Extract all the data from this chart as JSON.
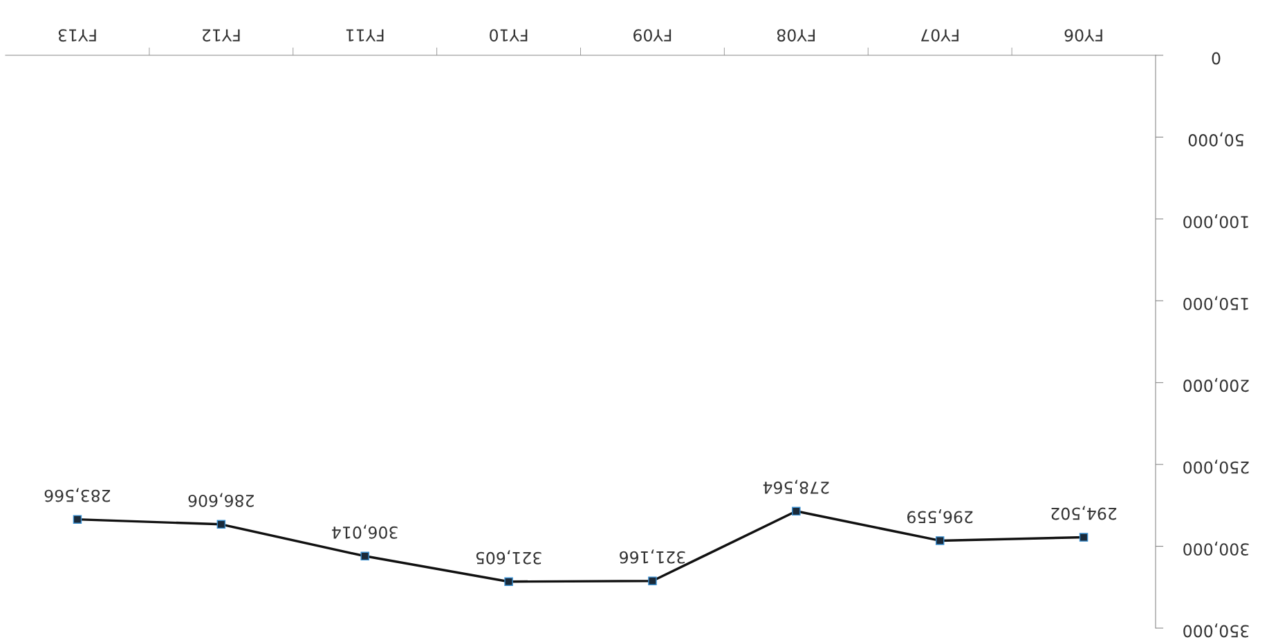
{
  "chart_data": {
    "type": "line",
    "categories": [
      "FY13",
      "FY12",
      "FY11",
      "FY10",
      "FY09",
      "FY08",
      "FY07",
      "FY06"
    ],
    "series": [
      {
        "color": "#111111",
        "values": [
          283566,
          286606,
          306014,
          321605,
          321166,
          278564,
          296559,
          294502
        ],
        "value_labels": [
          "283,566",
          "286,606",
          "306,014",
          "321,605",
          "321,166",
          "278,564",
          "296,559",
          "294,502"
        ]
      }
    ],
    "ylim": [
      350000,
      0
    ],
    "yticks": [
      {
        "value": 0,
        "label": "0"
      },
      {
        "value": 50000,
        "label": "50,000"
      },
      {
        "value": 100000,
        "label": "100,000"
      },
      {
        "value": 150000,
        "label": "150,000"
      },
      {
        "value": 200000,
        "label": "200,000"
      },
      {
        "value": 250000,
        "label": "250,000"
      },
      {
        "value": 300000,
        "label": "300,000"
      },
      {
        "value": 350000,
        "label": "350,000"
      }
    ],
    "grid": false,
    "legend": false,
    "marker": "square",
    "line_style": "solid"
  }
}
